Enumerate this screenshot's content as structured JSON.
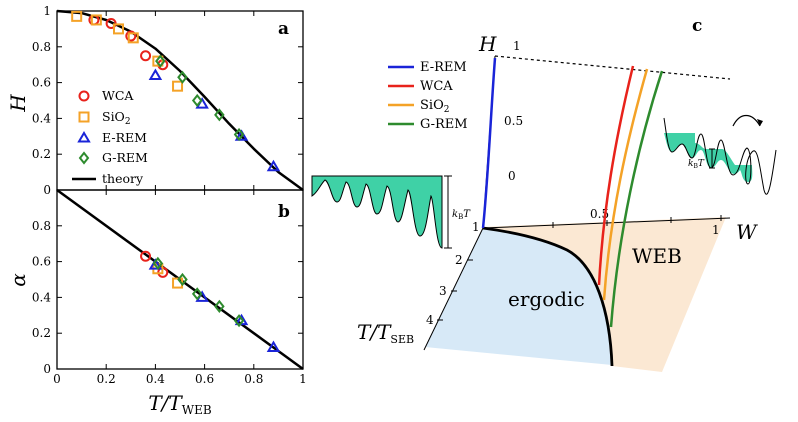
{
  "chart_data": [
    {
      "panel": "a",
      "type": "scatter",
      "xlabel": "T/T",
      "xlabel_sub": "WEB",
      "ylabel": "H",
      "xlim": [
        0,
        1
      ],
      "ylim": [
        0,
        1
      ],
      "xticks": [
        "0",
        "0.2",
        "0.4",
        "0.6",
        "0.8",
        "1"
      ],
      "yticks": [
        "0",
        "0.2",
        "0.4",
        "0.6",
        "0.8",
        "1"
      ],
      "legend": [
        "WCA",
        "SiO",
        "E-REM",
        "G-REM",
        "theory"
      ],
      "legend_sub": {
        "SiO": "2"
      },
      "legend_position": "left-center",
      "series": [
        {
          "name": "WCA",
          "marker": "circle",
          "color": "#e8221b",
          "x": [
            0.15,
            0.22,
            0.3,
            0.36,
            0.43
          ],
          "y": [
            0.95,
            0.93,
            0.86,
            0.75,
            0.7
          ]
        },
        {
          "name": "SiO2",
          "marker": "square",
          "color": "#f4a227",
          "x": [
            0.08,
            0.16,
            0.25,
            0.31,
            0.41,
            0.49
          ],
          "y": [
            0.97,
            0.95,
            0.9,
            0.85,
            0.72,
            0.58
          ]
        },
        {
          "name": "E-REM",
          "marker": "triangle",
          "color": "#1a24d8",
          "x": [
            0.4,
            0.59,
            0.75,
            0.88
          ],
          "y": [
            0.64,
            0.48,
            0.3,
            0.13
          ]
        },
        {
          "name": "G-REM",
          "marker": "diamond",
          "color": "#2e8b2e",
          "x": [
            0.42,
            0.51,
            0.57,
            0.66,
            0.74
          ],
          "y": [
            0.72,
            0.63,
            0.5,
            0.42,
            0.31
          ]
        }
      ],
      "theory": {
        "name": "theory",
        "color": "#000000",
        "x": [
          0,
          0.1,
          0.2,
          0.3,
          0.4,
          0.5,
          0.6,
          0.7,
          0.8,
          0.9,
          1.0
        ],
        "y": [
          1.0,
          0.988,
          0.95,
          0.885,
          0.79,
          0.665,
          0.52,
          0.37,
          0.23,
          0.1,
          0.0
        ]
      }
    },
    {
      "panel": "b",
      "type": "scatter",
      "xlabel": "T/T",
      "xlabel_sub": "WEB",
      "ylabel": "α",
      "xlim": [
        0,
        1
      ],
      "ylim": [
        0,
        1
      ],
      "xticks": [
        "0",
        "0.2",
        "0.4",
        "0.6",
        "0.8",
        "1"
      ],
      "yticks": [
        "0",
        "0.2",
        "0.4",
        "0.6",
        "0.8"
      ],
      "series": [
        {
          "name": "WCA",
          "marker": "circle",
          "color": "#e8221b",
          "x": [
            0.36,
            0.43
          ],
          "y": [
            0.63,
            0.54
          ]
        },
        {
          "name": "SiO2",
          "marker": "square",
          "color": "#f4a227",
          "x": [
            0.41,
            0.49
          ],
          "y": [
            0.56,
            0.48
          ]
        },
        {
          "name": "E-REM",
          "marker": "triangle",
          "color": "#1a24d8",
          "x": [
            0.4,
            0.59,
            0.75,
            0.88
          ],
          "y": [
            0.58,
            0.4,
            0.27,
            0.12
          ]
        },
        {
          "name": "G-REM",
          "marker": "diamond",
          "color": "#2e8b2e",
          "x": [
            0.41,
            0.51,
            0.57,
            0.66,
            0.74
          ],
          "y": [
            0.59,
            0.5,
            0.42,
            0.35,
            0.27
          ]
        }
      ],
      "theory": {
        "name": "theory",
        "color": "#000000",
        "x": [
          0,
          1
        ],
        "y": [
          1.0,
          0.0
        ]
      }
    },
    {
      "panel": "c",
      "type": "diagram",
      "axis_labels": {
        "H": "H",
        "W": "W",
        "T": "T/T",
        "T_sub": "SEB"
      },
      "tick_labels": {
        "H_top": "1",
        "H_mid": "0.5",
        "H_zero": "0",
        "W_half": "0.5",
        "W_one": "1",
        "T_one": "1",
        "T_two": "2",
        "T_three": "3",
        "T_four": "4"
      },
      "legend": [
        "E-REM",
        "WCA",
        "SiO",
        "G-REM"
      ],
      "legend_sub": {
        "SiO": "2"
      },
      "legend_colors": [
        "#1a24d8",
        "#e8221b",
        "#f4a227",
        "#2e8b2e"
      ],
      "region_labels": {
        "ergodic": "ergodic",
        "web": "WEB"
      },
      "energy_label": "k",
      "energy_label_sub": "B",
      "energy_label_var": "T",
      "colors": {
        "ergodic": "#d7e9f7",
        "web": "#fbe8d3",
        "landscape": "#3fd1a6"
      }
    }
  ]
}
